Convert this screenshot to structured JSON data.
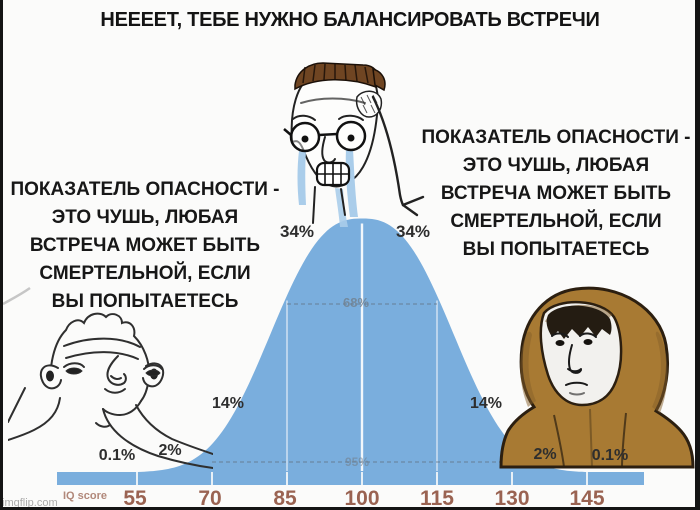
{
  "meme": {
    "title": "НЕЕЕЕТ, ТЕБЕ НУЖНО БАЛАНСИРОВАТЬ ВСТРЕЧИ",
    "left_caption": {
      "lines": [
        "ПОКАЗАТЕЛЬ ОПАСНОСТИ -",
        "ЭТО ЧУШЬ, ЛЮБАЯ",
        "ВСТРЕЧА МОЖЕТ БЫТЬ",
        "СМЕРТЕЛЬНОЙ, ЕСЛИ",
        "ВЫ ПОПЫТАЕТЕСЬ"
      ]
    },
    "right_caption": {
      "lines": [
        "ПОКАЗАТЕЛЬ ОПАСНОСТИ -",
        "ЭТО ЧУШЬ, ЛЮБАЯ",
        "ВСТРЕЧА МОЖЕТ БЫТЬ",
        "СМЕРТЕЛЬНОЙ, ЕСЛИ",
        "ВЫ ПОПЫТАЕТЕСЬ"
      ]
    },
    "watermark": "imgflip.com",
    "characters": {
      "left": "brainlet-wojak",
      "middle": "crying-midwit-wojak",
      "right": "hooded-wojak"
    }
  },
  "chart_data": {
    "type": "area",
    "title": "IQ normal distribution (bell curve)",
    "xlabel": "IQ score",
    "x_ticks": [
      55,
      70,
      85,
      100,
      115,
      130,
      145
    ],
    "mean": 100,
    "sd": 15,
    "segment_percentages": [
      "0.1%",
      "2%",
      "14%",
      "34%",
      "34%",
      "14%",
      "2%",
      "0.1%"
    ],
    "interval_labels": [
      {
        "label": "68%",
        "from": 85,
        "to": 115
      },
      {
        "label": "95%",
        "from": 70,
        "to": 130
      }
    ],
    "grid": false,
    "legend": "none",
    "colors": {
      "curve": "#7aaedd",
      "axis_ticks": "#9a6352",
      "axis_label": "#b1887a",
      "percent_text": "#2e2e2e",
      "interval_text": "#72808e"
    }
  }
}
